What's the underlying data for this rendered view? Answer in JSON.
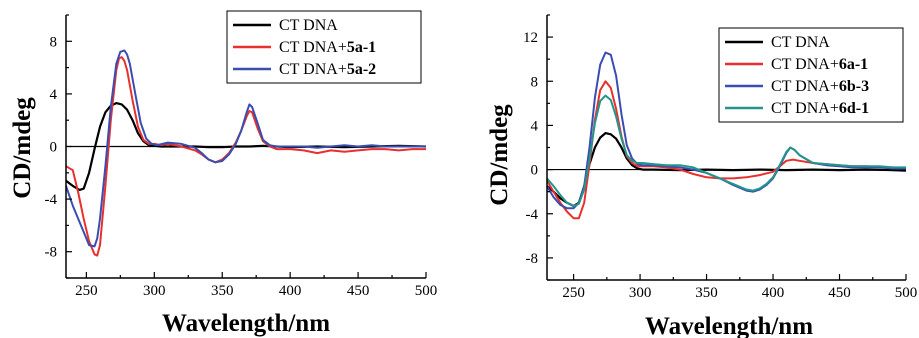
{
  "chart_data": [
    {
      "type": "line",
      "xlabel": "Wavelength/nm",
      "ylabel": "CD/mdeg",
      "xlim": [
        235,
        500
      ],
      "ylim": [
        -10,
        10
      ],
      "x_ticks": [
        250,
        300,
        350,
        400,
        450,
        500
      ],
      "y_ticks": [
        -8,
        -4,
        0,
        4,
        8
      ],
      "y_tick_labels": [
        "-8",
        "-4",
        "0",
        "4",
        "8"
      ],
      "grid": false,
      "legend_position": "top-right",
      "series": [
        {
          "name": "CT DNA",
          "name_plain": "CT DNA",
          "name_bold": "",
          "color": "#000000",
          "x": [
            235,
            240,
            245,
            248,
            252,
            256,
            260,
            264,
            268,
            272,
            276,
            280,
            284,
            288,
            292,
            296,
            300,
            305,
            310,
            320,
            330,
            340,
            350,
            360,
            370,
            380,
            390,
            400,
            420,
            440,
            460,
            480,
            500
          ],
          "y": [
            -2.6,
            -3.0,
            -3.3,
            -3.2,
            -2.0,
            -0.2,
            1.5,
            2.6,
            3.1,
            3.3,
            3.2,
            2.8,
            2.0,
            1.0,
            0.4,
            0.1,
            0.05,
            0.0,
            0.0,
            0.0,
            0.0,
            -0.05,
            -0.05,
            0.0,
            0.0,
            0.05,
            0.0,
            -0.05,
            0.0,
            -0.05,
            0.0,
            0.05,
            0.0
          ]
        },
        {
          "name": "CT DNA+5a-1",
          "name_plain": "CT DNA+",
          "name_bold": "5a-1",
          "color": "#e8302e",
          "x": [
            235,
            240,
            244,
            248,
            252,
            256,
            258,
            260,
            264,
            268,
            272,
            274,
            276,
            278,
            280,
            284,
            288,
            292,
            296,
            300,
            305,
            310,
            320,
            330,
            335,
            340,
            345,
            350,
            355,
            360,
            364,
            368,
            370,
            372,
            376,
            380,
            385,
            390,
            400,
            410,
            420,
            430,
            440,
            450,
            460,
            470,
            480,
            490,
            500
          ],
          "y": [
            -1.5,
            -1.8,
            -3.5,
            -5.5,
            -7.2,
            -8.2,
            -8.3,
            -7.5,
            -3.0,
            2.0,
            5.8,
            6.7,
            6.8,
            6.5,
            5.8,
            3.5,
            1.5,
            0.5,
            0.2,
            0.2,
            0.1,
            0.2,
            0.0,
            -0.3,
            -0.6,
            -1.0,
            -1.2,
            -1.0,
            -0.5,
            0.3,
            1.2,
            2.3,
            2.7,
            2.6,
            1.4,
            0.4,
            0.0,
            -0.2,
            -0.2,
            -0.3,
            -0.5,
            -0.3,
            -0.4,
            -0.3,
            -0.2,
            -0.2,
            -0.3,
            -0.2,
            -0.2
          ]
        },
        {
          "name": "CT DNA+5a-2",
          "name_plain": "CT DNA+",
          "name_bold": "5a-2",
          "color": "#3a4db0",
          "x": [
            235,
            240,
            244,
            248,
            252,
            256,
            258,
            260,
            264,
            268,
            272,
            275,
            278,
            280,
            282,
            286,
            290,
            294,
            298,
            302,
            306,
            310,
            320,
            330,
            335,
            340,
            345,
            350,
            355,
            360,
            364,
            368,
            370,
            372,
            376,
            380,
            385,
            390,
            400,
            410,
            420,
            430,
            440,
            450,
            460,
            470,
            480,
            490,
            500
          ],
          "y": [
            -3.0,
            -4.5,
            -5.5,
            -6.5,
            -7.5,
            -7.6,
            -7.0,
            -5.5,
            -1.5,
            3.0,
            6.3,
            7.2,
            7.3,
            7.0,
            6.3,
            4.0,
            1.8,
            0.6,
            0.2,
            0.1,
            0.2,
            0.3,
            0.2,
            -0.1,
            -0.5,
            -1.0,
            -1.2,
            -1.1,
            -0.6,
            0.2,
            1.2,
            2.6,
            3.2,
            3.0,
            1.8,
            0.5,
            0.1,
            0.0,
            0.0,
            0.0,
            -0.1,
            0.0,
            0.1,
            0.0,
            0.1,
            0.0,
            0.0,
            0.0,
            0.0
          ]
        }
      ]
    },
    {
      "type": "line",
      "xlabel": "Wavelength/nm",
      "ylabel": "CD/mdeg",
      "xlim": [
        230,
        500
      ],
      "ylim": [
        -10,
        14
      ],
      "x_ticks": [
        250,
        300,
        350,
        400,
        450,
        500
      ],
      "y_ticks": [
        -8,
        -4,
        0,
        4,
        8,
        12
      ],
      "y_tick_labels": [
        "-8",
        "-4",
        "0",
        "4",
        "8",
        "12"
      ],
      "grid": false,
      "legend_position": "top-right",
      "series": [
        {
          "name": "CT DNA",
          "name_plain": "CT DNA",
          "name_bold": "",
          "color": "#000000",
          "x": [
            230,
            235,
            240,
            245,
            250,
            254,
            258,
            262,
            266,
            270,
            274,
            278,
            282,
            286,
            290,
            294,
            298,
            302,
            310,
            330,
            350,
            370,
            390,
            410,
            430,
            450,
            470,
            490,
            500
          ],
          "y": [
            -1.5,
            -2.0,
            -2.6,
            -3.0,
            -3.3,
            -3.0,
            -1.5,
            0.5,
            2.0,
            2.9,
            3.3,
            3.2,
            2.8,
            2.0,
            1.0,
            0.4,
            0.1,
            0.0,
            0.0,
            -0.05,
            0.0,
            -0.05,
            0.0,
            -0.05,
            0.0,
            -0.05,
            0.0,
            -0.05,
            -0.1
          ]
        },
        {
          "name": "CT DNA+6a-1",
          "name_plain": "CT DNA+",
          "name_bold": "6a-1",
          "color": "#e8302e",
          "x": [
            230,
            235,
            240,
            245,
            250,
            254,
            258,
            262,
            266,
            270,
            274,
            278,
            282,
            286,
            290,
            294,
            298,
            302,
            310,
            320,
            330,
            340,
            350,
            360,
            370,
            380,
            390,
            400,
            405,
            410,
            415,
            420,
            430,
            440,
            450,
            460,
            470,
            480,
            490,
            500
          ],
          "y": [
            -1.0,
            -2.0,
            -3.0,
            -3.8,
            -4.4,
            -4.4,
            -3.0,
            0.5,
            4.5,
            7.2,
            8.0,
            7.4,
            5.5,
            3.0,
            1.2,
            0.6,
            0.3,
            0.3,
            0.3,
            0.2,
            0.0,
            -0.4,
            -0.7,
            -0.8,
            -0.8,
            -0.7,
            -0.5,
            -0.2,
            0.3,
            0.8,
            0.9,
            0.8,
            0.6,
            0.5,
            0.4,
            0.3,
            0.3,
            0.2,
            0.2,
            0.1
          ]
        },
        {
          "name": "CT DNA+6b-3",
          "name_plain": "CT DNA+",
          "name_bold": "6b-3",
          "color": "#3a4db0",
          "x": [
            230,
            235,
            240,
            245,
            250,
            254,
            258,
            262,
            266,
            270,
            274,
            278,
            282,
            286,
            290,
            294,
            298,
            302,
            310,
            320,
            330,
            340,
            350,
            360,
            370,
            380,
            385,
            390,
            395,
            400,
            405,
            410,
            413,
            416,
            420,
            430,
            440,
            450,
            460,
            470,
            480,
            490,
            500
          ],
          "y": [
            -1.5,
            -2.5,
            -3.2,
            -3.5,
            -3.5,
            -3.0,
            -1.5,
            2.0,
            6.5,
            9.5,
            10.6,
            10.4,
            8.5,
            5.0,
            2.2,
            1.0,
            0.5,
            0.4,
            0.4,
            0.3,
            0.2,
            0.0,
            -0.3,
            -0.8,
            -1.4,
            -1.9,
            -2.0,
            -1.8,
            -1.4,
            -0.8,
            0.3,
            1.5,
            2.0,
            1.8,
            1.3,
            0.6,
            0.4,
            0.3,
            0.2,
            0.2,
            0.2,
            0.1,
            0.1
          ]
        },
        {
          "name": "CT DNA+6d-1",
          "name_plain": "CT DNA+",
          "name_bold": "6d-1",
          "color": "#23968a",
          "x": [
            230,
            235,
            240,
            245,
            250,
            254,
            258,
            262,
            266,
            270,
            274,
            278,
            282,
            286,
            290,
            294,
            298,
            302,
            310,
            320,
            330,
            340,
            350,
            360,
            370,
            380,
            385,
            390,
            395,
            400,
            405,
            410,
            413,
            416,
            420,
            430,
            440,
            450,
            460,
            470,
            480,
            490,
            500
          ],
          "y": [
            -0.8,
            -1.5,
            -2.3,
            -3.0,
            -3.3,
            -3.1,
            -1.8,
            1.0,
            4.2,
            6.2,
            6.7,
            6.3,
            4.8,
            2.8,
            1.3,
            0.8,
            0.6,
            0.6,
            0.5,
            0.4,
            0.4,
            0.2,
            -0.3,
            -0.8,
            -1.3,
            -1.8,
            -1.9,
            -1.7,
            -1.3,
            -0.7,
            0.4,
            1.6,
            2.0,
            1.8,
            1.3,
            0.6,
            0.5,
            0.4,
            0.3,
            0.3,
            0.3,
            0.2,
            0.2
          ]
        }
      ]
    }
  ]
}
